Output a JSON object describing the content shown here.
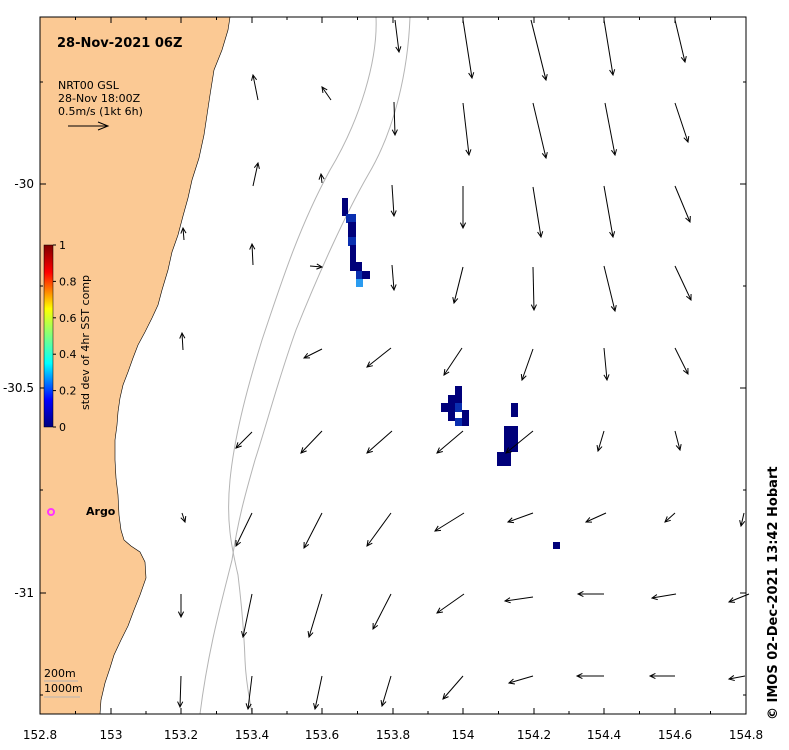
{
  "map": {
    "title": "28-Nov-2021 06Z",
    "legend": {
      "line1": "NRT00 GSL",
      "line2": "28-Nov 18:00Z",
      "line3": "0.5m/s (1kt 6h)"
    },
    "depth_labels": [
      "200m",
      "1000m"
    ],
    "argo_label": "Argo",
    "credit": "© IMOS 02-Dec-2021 13:42 Hobart",
    "x_ticks": [
      "152.8",
      "153",
      "153.2",
      "153.4",
      "153.6",
      "153.8",
      "154",
      "154.2",
      "154.4",
      "154.6",
      "154.8"
    ],
    "y_ticks": [
      "-30",
      "-30.5",
      "-31"
    ],
    "colorbar": {
      "label": "std dev of 4hr SST comp",
      "ticks": [
        "1",
        "0.8",
        "0.6",
        "0.4",
        "0.2",
        "0"
      ]
    },
    "colors": {
      "land": "#fbc994",
      "contour": "#b4b4b4",
      "argo": "#ff33ff",
      "sst_dark": "#00007a",
      "sst_mid": "#0a2fb0",
      "sst_light": "#2a9cf0"
    }
  }
}
